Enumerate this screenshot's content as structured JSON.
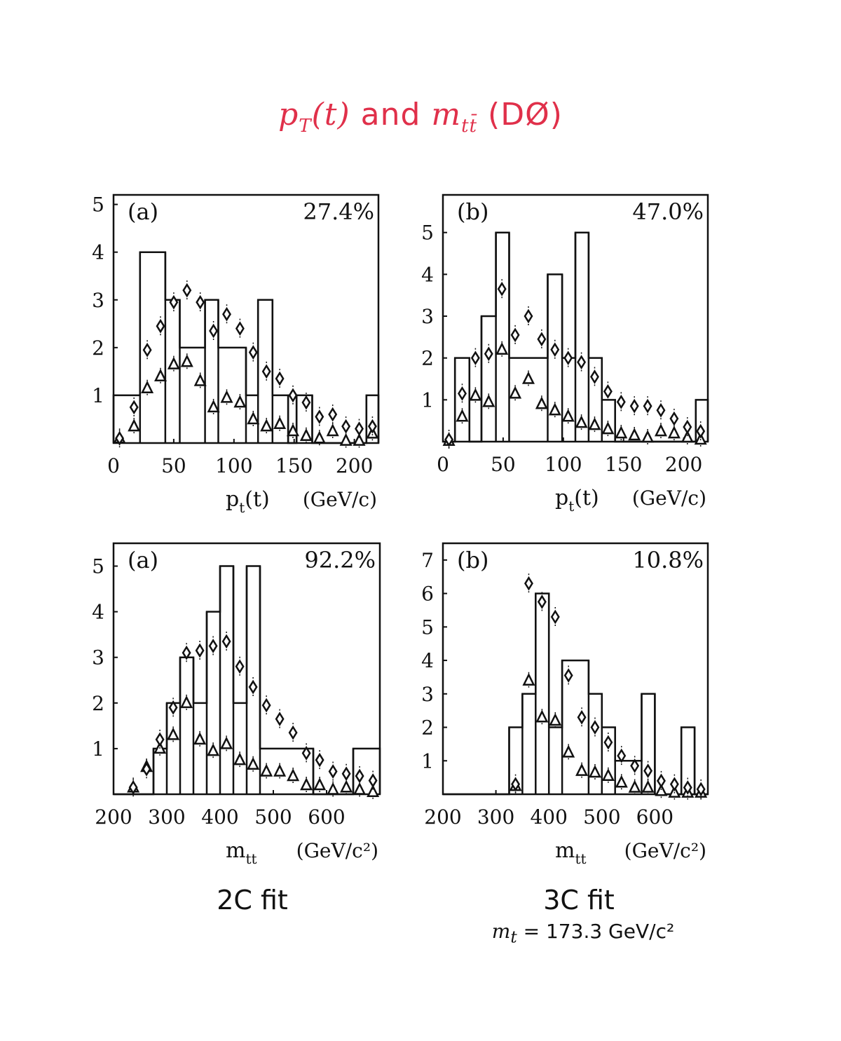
{
  "title": {
    "pt_sym": "p",
    "pt_sub": "T",
    "t_arg": "(t)",
    "and": "and",
    "m_sym": "m",
    "m_sub": "tt̄",
    "experiment": "(DØ)",
    "color": "#e0304a"
  },
  "captions": {
    "left": "2C fit",
    "right": "3C fit",
    "right_sub_sym": "m",
    "right_sub_idx": "t",
    "right_sub_text": " = 173.3 GeV/c²"
  },
  "chart_data": [
    {
      "type": "bar",
      "label": "(a)",
      "percent": "27.4%",
      "xlabel": "p_t(t)",
      "xunit": "(GeV/c)",
      "xlim": [
        0,
        220
      ],
      "ylim": [
        0,
        5.2
      ],
      "xticks": [
        0,
        50,
        100,
        150,
        200
      ],
      "yticks": [
        1,
        2,
        3,
        4,
        5
      ],
      "histogram": {
        "edges": [
          0,
          22,
          43,
          55,
          76,
          87,
          110,
          120,
          132,
          145,
          152,
          165,
          210,
          220
        ],
        "counts": [
          1,
          4,
          3,
          2,
          3,
          2,
          1,
          3,
          1,
          0,
          1,
          0,
          1
        ]
      },
      "diamonds": {
        "x": [
          5,
          17,
          28,
          39,
          50,
          61,
          72,
          83,
          94,
          105,
          116,
          127,
          138,
          149,
          160,
          171,
          182,
          193,
          204,
          215
        ],
        "y": [
          0.1,
          0.75,
          1.95,
          2.45,
          2.95,
          3.2,
          2.95,
          2.35,
          2.7,
          2.4,
          1.9,
          1.5,
          1.35,
          1.0,
          0.85,
          0.55,
          0.6,
          0.35,
          0.3,
          0.35
        ]
      },
      "triangles": {
        "x": [
          5,
          17,
          28,
          39,
          50,
          61,
          72,
          83,
          94,
          105,
          116,
          127,
          138,
          149,
          160,
          171,
          182,
          193,
          204,
          215
        ],
        "y": [
          0.1,
          0.35,
          1.15,
          1.4,
          1.65,
          1.7,
          1.3,
          0.75,
          0.95,
          0.85,
          0.5,
          0.35,
          0.4,
          0.25,
          0.15,
          0.1,
          0.25,
          0.05,
          0.05,
          0.2
        ]
      }
    },
    {
      "type": "bar",
      "label": "(b)",
      "percent": "47.0%",
      "xlabel": "p_t(t)",
      "xunit": "(GeV/c)",
      "xlim": [
        0,
        220
      ],
      "ylim": [
        0,
        5.9
      ],
      "xticks": [
        0,
        50,
        100,
        150,
        200
      ],
      "yticks": [
        1,
        2,
        3,
        4,
        5
      ],
      "histogram": {
        "edges": [
          0,
          10,
          22,
          32,
          44,
          55,
          87,
          99,
          110,
          121,
          132,
          143,
          210,
          220
        ],
        "counts": [
          0,
          2,
          0,
          3,
          5,
          2,
          4,
          2,
          5,
          2,
          1,
          0,
          1
        ]
      },
      "diamonds": {
        "x": [
          5,
          16,
          27,
          38,
          49,
          60,
          71,
          82,
          93,
          104,
          115,
          126,
          137,
          148,
          159,
          170,
          181,
          192,
          203,
          214
        ],
        "y": [
          0.05,
          1.15,
          2.0,
          2.1,
          3.65,
          2.55,
          3.0,
          2.45,
          2.2,
          2.0,
          1.9,
          1.55,
          1.2,
          0.95,
          0.85,
          0.85,
          0.75,
          0.55,
          0.35,
          0.25
        ]
      },
      "triangles": {
        "x": [
          5,
          16,
          27,
          38,
          49,
          60,
          71,
          82,
          93,
          104,
          115,
          126,
          137,
          148,
          159,
          170,
          181,
          192,
          203,
          214
        ],
        "y": [
          0.02,
          0.6,
          1.1,
          0.95,
          2.2,
          1.15,
          1.5,
          0.9,
          0.75,
          0.6,
          0.45,
          0.4,
          0.3,
          0.2,
          0.15,
          0.1,
          0.25,
          0.2,
          0.1,
          0.05
        ]
      }
    },
    {
      "type": "bar",
      "label": "(a)",
      "percent": "92.2%",
      "xlabel": "m_tt",
      "xunit": "(GeV/c²)",
      "xlim": [
        200,
        700
      ],
      "ylim": [
        0,
        5.5
      ],
      "xticks": [
        200,
        300,
        400,
        500,
        600
      ],
      "yticks": [
        1,
        2,
        3,
        4,
        5
      ],
      "histogram": {
        "edges": [
          200,
          275,
          300,
          325,
          350,
          375,
          400,
          425,
          450,
          475,
          575,
          600,
          650,
          700
        ],
        "counts": [
          0,
          1,
          2,
          3,
          2,
          4,
          5,
          2,
          5,
          1,
          0,
          0,
          1
        ]
      },
      "diamonds": {
        "x": [
          237,
          262,
          287,
          312,
          337,
          362,
          387,
          412,
          437,
          462,
          487,
          512,
          537,
          562,
          587,
          612,
          637,
          662,
          687
        ],
        "y": [
          0.15,
          0.55,
          1.2,
          1.9,
          3.1,
          3.15,
          3.25,
          3.35,
          2.8,
          2.35,
          1.95,
          1.65,
          1.35,
          0.9,
          0.75,
          0.5,
          0.45,
          0.4,
          0.3
        ]
      },
      "triangles": {
        "x": [
          237,
          262,
          287,
          312,
          337,
          362,
          387,
          412,
          437,
          462,
          487,
          512,
          537,
          562,
          587,
          612,
          637,
          662,
          687
        ],
        "y": [
          0.15,
          0.6,
          1.0,
          1.3,
          2.0,
          1.2,
          0.95,
          1.1,
          0.75,
          0.65,
          0.5,
          0.5,
          0.4,
          0.2,
          0.2,
          0.1,
          0.15,
          0.1,
          0.05
        ]
      }
    },
    {
      "type": "bar",
      "label": "(b)",
      "percent": "10.8%",
      "xlabel": "m_tt",
      "xunit": "(GeV/c²)",
      "xlim": [
        200,
        700
      ],
      "ylim": [
        0,
        7.5
      ],
      "xticks": [
        200,
        300,
        400,
        500,
        600
      ],
      "yticks": [
        1,
        2,
        3,
        4,
        5,
        6,
        7
      ],
      "histogram": {
        "edges": [
          200,
          325,
          350,
          375,
          400,
          425,
          475,
          500,
          525,
          575,
          600,
          650,
          675,
          700
        ],
        "counts": [
          0,
          2,
          3,
          6,
          2,
          4,
          3,
          2,
          1,
          3,
          0,
          2,
          0
        ]
      },
      "diamonds": {
        "x": [
          337,
          362,
          387,
          412,
          437,
          462,
          487,
          512,
          537,
          562,
          587,
          612,
          637,
          662,
          687
        ],
        "y": [
          0.3,
          6.3,
          5.75,
          5.3,
          3.55,
          2.3,
          2.0,
          1.55,
          1.15,
          0.85,
          0.7,
          0.4,
          0.3,
          0.2,
          0.15
        ]
      },
      "triangles": {
        "x": [
          337,
          362,
          387,
          412,
          437,
          462,
          487,
          512,
          537,
          562,
          587,
          612,
          637,
          662,
          687
        ],
        "y": [
          0.25,
          3.4,
          2.3,
          2.2,
          1.25,
          0.7,
          0.65,
          0.55,
          0.35,
          0.2,
          0.2,
          0.1,
          0.05,
          0.05,
          0.05
        ]
      }
    }
  ]
}
